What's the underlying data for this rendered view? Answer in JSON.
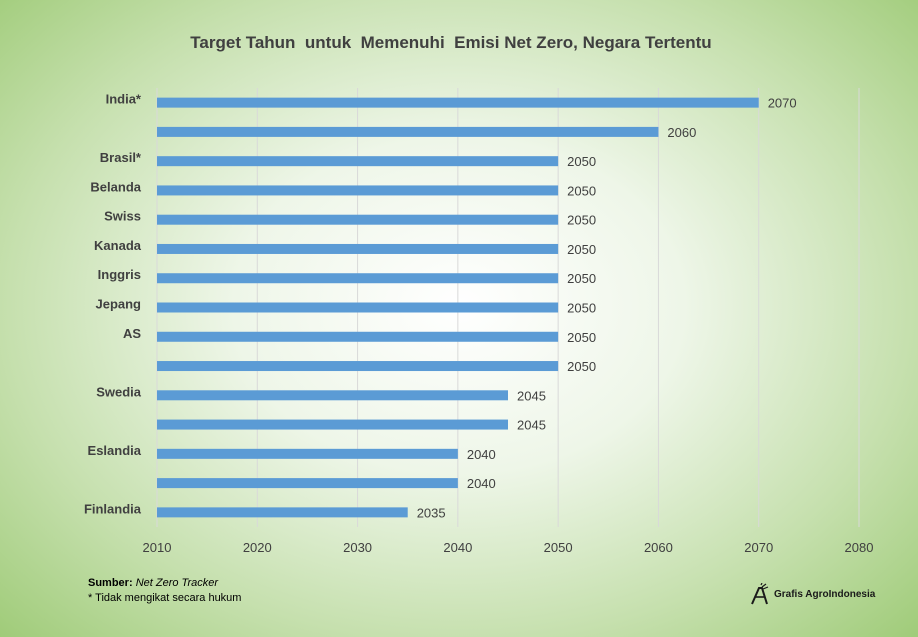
{
  "chart_data": {
    "type": "bar",
    "orientation": "horizontal",
    "title": "Target Tahun  untuk  Memenuhi  Emisi Net Zero, Negara Tertentu",
    "categories": [
      "India*",
      "",
      "Brasil*",
      "Belanda",
      "Swiss",
      "Kanada",
      "Inggris",
      "Jepang",
      "AS",
      "",
      "Swedia",
      "",
      "Eslandia",
      "",
      "Finlandia"
    ],
    "values": [
      2070,
      2060,
      2050,
      2050,
      2050,
      2050,
      2050,
      2050,
      2050,
      2050,
      2045,
      2045,
      2040,
      2040,
      2035
    ],
    "data_labels": [
      "2070",
      "2060",
      "2050",
      "2050",
      "2050",
      "2050",
      "2050",
      "2050",
      "2050",
      "2050",
      "2045",
      "2045",
      "2040",
      "2040",
      "2035"
    ],
    "xlim": [
      2010,
      2080
    ],
    "xticks": [
      "2010",
      "2020",
      "2030",
      "2040",
      "2050",
      "2060",
      "2070",
      "2080"
    ],
    "xlabel": "",
    "ylabel": "",
    "grid": "vertical",
    "bar_color": "#5b9bd5",
    "grid_color": "#d9d9d9",
    "text_color": "#404040"
  },
  "footer": {
    "source_label": "Sumber:",
    "source_name": "Net Zero Tracker",
    "note": "* Tidak mengikat secara hukum"
  },
  "brand": {
    "name": "Grafis AgroIndonesia",
    "icon": "agroindonesia-logo-icon"
  }
}
